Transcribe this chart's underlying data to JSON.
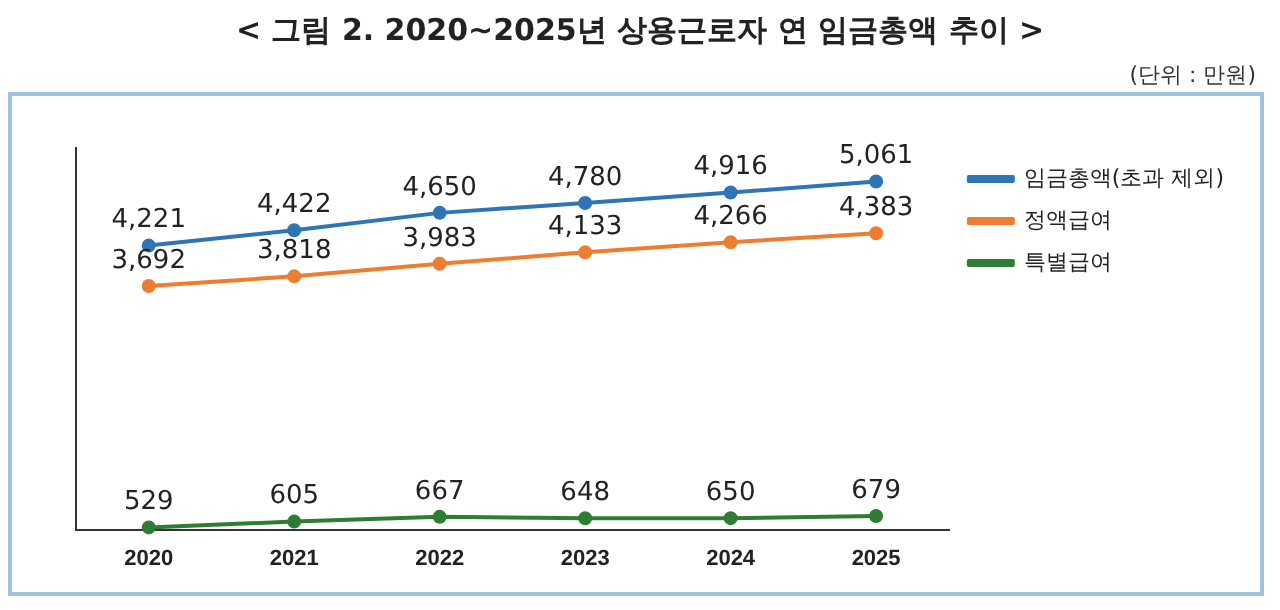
{
  "chart_data": {
    "type": "line",
    "title": "< 그림 2. 2020~2025년 상용근로자 연 임금총액 추이 >",
    "subtitle": "(단위 : 만원)",
    "categories": [
      "2020",
      "2021",
      "2022",
      "2023",
      "2024",
      "2025"
    ],
    "series": [
      {
        "name": "임금총액(초과 제외)",
        "color": "#2e75b6",
        "values": [
          4221,
          4422,
          4650,
          4780,
          4916,
          5061
        ],
        "value_labels": [
          "4,221",
          "4,422",
          "4,650",
          "4,780",
          "4,916",
          "5,061"
        ]
      },
      {
        "name": "정액급여",
        "color": "#ed7d31",
        "values": [
          3692,
          3818,
          3983,
          4133,
          4266,
          4383
        ],
        "value_labels": [
          "3,692",
          "3,818",
          "3,983",
          "4,133",
          "4,266",
          "4,383"
        ]
      },
      {
        "name": "특별급여",
        "color": "#2e7d32",
        "values": [
          529,
          605,
          667,
          648,
          650,
          679
        ],
        "value_labels": [
          "529",
          "605",
          "667",
          "648",
          "650",
          "679"
        ]
      }
    ],
    "legend": "top right",
    "marker": "circle",
    "line_style": "solid"
  }
}
